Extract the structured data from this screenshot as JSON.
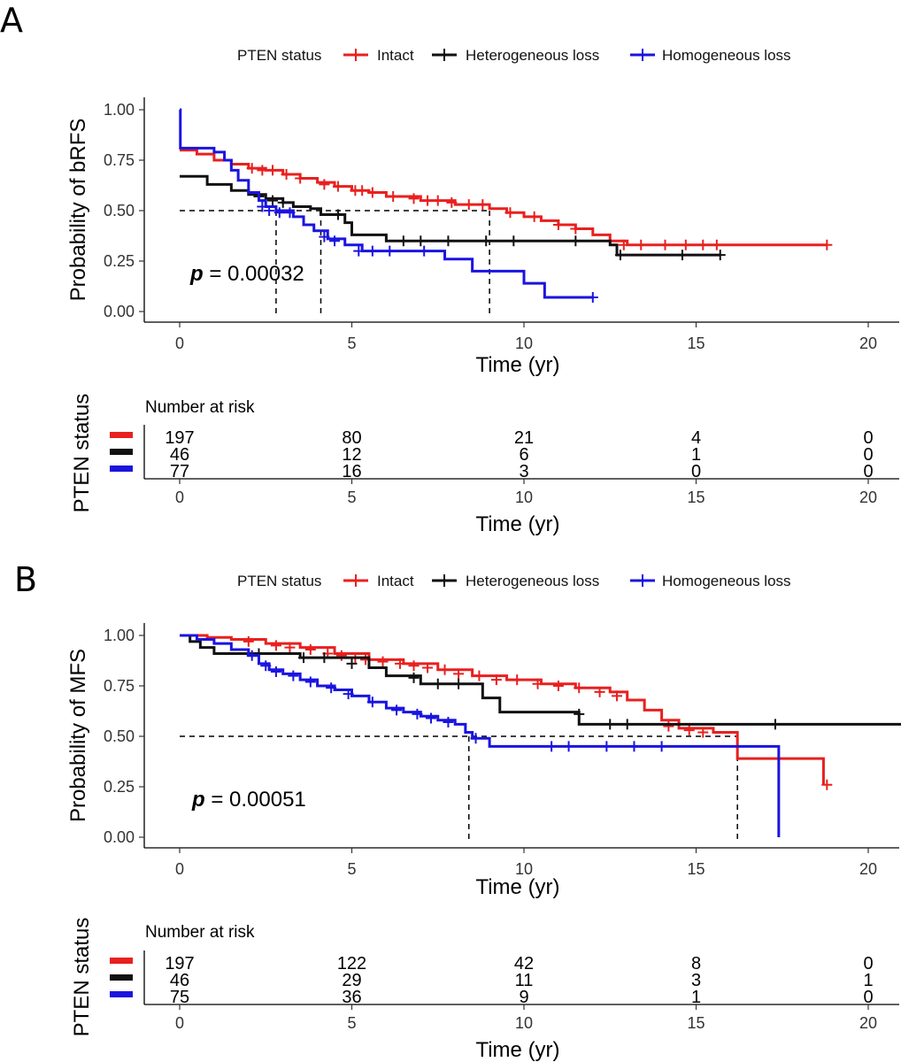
{
  "legend": {
    "title": "PTEN status",
    "items": [
      {
        "label": "Intact",
        "color": "#e8201f"
      },
      {
        "label": "Heterogeneous loss",
        "color": "#111111"
      },
      {
        "label": "Homogeneous loss",
        "color": "#1a14e0"
      }
    ]
  },
  "risk_table": {
    "title": "Number at risk",
    "ylabel": "PTEN status"
  },
  "chart_data": [
    {
      "panel": "A",
      "type": "line",
      "subtype": "kaplan-meier",
      "xlabel": "Time (yr)",
      "ylabel": "Probability of bRFS",
      "xlim": [
        -1,
        21
      ],
      "ylim": [
        0,
        1
      ],
      "xticks": [
        0,
        5,
        10,
        15,
        20
      ],
      "yticks": [
        "0.00",
        "0.25",
        "0.50",
        "0.75",
        "1.00"
      ],
      "pvalue_prefix": "p",
      "pvalue_text": " = 0.00032",
      "median_lines": {
        "y": 0.5,
        "x": [
          2.8,
          4.1,
          9.0
        ]
      },
      "series": [
        {
          "name": "Intact",
          "color": "#e8201f",
          "steps": [
            [
              0,
              0.8
            ],
            [
              0.5,
              0.78
            ],
            [
              1,
              0.75
            ],
            [
              1.5,
              0.73
            ],
            [
              2,
              0.71
            ],
            [
              2.5,
              0.7
            ],
            [
              3,
              0.68
            ],
            [
              3.5,
              0.66
            ],
            [
              4,
              0.64
            ],
            [
              4.5,
              0.62
            ],
            [
              5,
              0.6
            ],
            [
              5.5,
              0.59
            ],
            [
              6,
              0.57
            ],
            [
              7,
              0.55
            ],
            [
              8,
              0.53
            ],
            [
              9,
              0.51
            ],
            [
              9.5,
              0.49
            ],
            [
              10,
              0.47
            ],
            [
              10.5,
              0.45
            ],
            [
              11,
              0.43
            ],
            [
              11.5,
              0.41
            ],
            [
              12,
              0.38
            ],
            [
              12.5,
              0.35
            ],
            [
              13,
              0.33
            ],
            [
              18.8,
              0.33
            ]
          ],
          "censors": [
            [
              2.1,
              0.71
            ],
            [
              2.4,
              0.7
            ],
            [
              2.7,
              0.7
            ],
            [
              3.1,
              0.68
            ],
            [
              3.5,
              0.66
            ],
            [
              4.2,
              0.63
            ],
            [
              4.6,
              0.62
            ],
            [
              5.1,
              0.6
            ],
            [
              5.3,
              0.6
            ],
            [
              5.6,
              0.59
            ],
            [
              6.2,
              0.57
            ],
            [
              6.8,
              0.56
            ],
            [
              7.2,
              0.55
            ],
            [
              7.5,
              0.55
            ],
            [
              7.9,
              0.54
            ],
            [
              8.4,
              0.53
            ],
            [
              8.8,
              0.53
            ],
            [
              9.6,
              0.49
            ],
            [
              10.3,
              0.47
            ],
            [
              11.0,
              0.43
            ],
            [
              11.5,
              0.41
            ],
            [
              12.9,
              0.33
            ],
            [
              13.4,
              0.33
            ],
            [
              14.1,
              0.33
            ],
            [
              14.7,
              0.33
            ],
            [
              15.2,
              0.33
            ],
            [
              15.6,
              0.33
            ],
            [
              18.8,
              0.33
            ]
          ]
        },
        {
          "name": "Heterogeneous loss",
          "color": "#111111",
          "steps": [
            [
              0,
              0.67
            ],
            [
              0.8,
              0.63
            ],
            [
              1.5,
              0.6
            ],
            [
              2,
              0.58
            ],
            [
              2.5,
              0.56
            ],
            [
              3,
              0.54
            ],
            [
              3.3,
              0.52
            ],
            [
              3.8,
              0.51
            ],
            [
              4.1,
              0.48
            ],
            [
              4.8,
              0.44
            ],
            [
              5.0,
              0.38
            ],
            [
              6,
              0.35
            ],
            [
              12.5,
              0.33
            ],
            [
              12.7,
              0.28
            ],
            [
              15.7,
              0.28
            ]
          ],
          "censors": [
            [
              2.3,
              0.57
            ],
            [
              2.7,
              0.55
            ],
            [
              3.0,
              0.54
            ],
            [
              4.6,
              0.48
            ],
            [
              6.5,
              0.35
            ],
            [
              7.0,
              0.35
            ],
            [
              7.8,
              0.35
            ],
            [
              8.9,
              0.35
            ],
            [
              9.7,
              0.35
            ],
            [
              11.5,
              0.35
            ],
            [
              12.8,
              0.28
            ],
            [
              14.6,
              0.28
            ],
            [
              15.7,
              0.28
            ]
          ]
        },
        {
          "name": "Homogeneous loss",
          "color": "#1a14e0",
          "steps": [
            [
              0,
              1.0
            ],
            [
              0.02,
              0.81
            ],
            [
              1.0,
              0.79
            ],
            [
              1.3,
              0.75
            ],
            [
              1.5,
              0.7
            ],
            [
              1.7,
              0.65
            ],
            [
              2.0,
              0.59
            ],
            [
              2.3,
              0.55
            ],
            [
              2.5,
              0.52
            ],
            [
              2.8,
              0.5
            ],
            [
              3.3,
              0.47
            ],
            [
              3.6,
              0.43
            ],
            [
              3.9,
              0.4
            ],
            [
              4.3,
              0.36
            ],
            [
              4.8,
              0.33
            ],
            [
              5.3,
              0.3
            ],
            [
              6.2,
              0.3
            ],
            [
              7.2,
              0.3
            ],
            [
              7.7,
              0.26
            ],
            [
              8.5,
              0.2
            ],
            [
              10.0,
              0.14
            ],
            [
              10.6,
              0.07
            ],
            [
              12.0,
              0.07
            ]
          ],
          "censors": [
            [
              2.4,
              0.52
            ],
            [
              2.6,
              0.5
            ],
            [
              2.9,
              0.49
            ],
            [
              3.2,
              0.49
            ],
            [
              4.2,
              0.37
            ],
            [
              4.5,
              0.35
            ],
            [
              5.2,
              0.3
            ],
            [
              5.6,
              0.3
            ],
            [
              6.1,
              0.3
            ],
            [
              7.1,
              0.3
            ],
            [
              12.0,
              0.07
            ]
          ]
        }
      ],
      "risk_times": [
        0,
        5,
        10,
        15,
        20
      ],
      "risk_counts": [
        {
          "name": "Intact",
          "values": [
            "197",
            "80",
            "21",
            "4",
            "0"
          ]
        },
        {
          "name": "Heterogeneous loss",
          "values": [
            "46",
            "12",
            "6",
            "1",
            "0"
          ]
        },
        {
          "name": "Homogeneous loss",
          "values": [
            "77",
            "16",
            "3",
            "0",
            "0"
          ]
        }
      ]
    },
    {
      "panel": "B",
      "type": "line",
      "subtype": "kaplan-meier",
      "xlabel": "Time (yr)",
      "ylabel": "Probability of MFS",
      "xlim": [
        -1,
        21
      ],
      "ylim": [
        0,
        1
      ],
      "xticks": [
        0,
        5,
        10,
        15,
        20
      ],
      "yticks": [
        "0.00",
        "0.25",
        "0.50",
        "0.75",
        "1.00"
      ],
      "pvalue_prefix": "p",
      "pvalue_text": " = 0.00051",
      "median_lines": {
        "y": 0.5,
        "x": [
          8.4,
          16.2
        ]
      },
      "series": [
        {
          "name": "Intact",
          "color": "#e8201f",
          "steps": [
            [
              0,
              1.0
            ],
            [
              0.8,
              0.99
            ],
            [
              1.5,
              0.98
            ],
            [
              2.5,
              0.96
            ],
            [
              3.5,
              0.94
            ],
            [
              4.5,
              0.91
            ],
            [
              5.5,
              0.88
            ],
            [
              6.5,
              0.86
            ],
            [
              7.5,
              0.83
            ],
            [
              8.5,
              0.8
            ],
            [
              9.5,
              0.78
            ],
            [
              10.5,
              0.76
            ],
            [
              11.5,
              0.74
            ],
            [
              12.5,
              0.72
            ],
            [
              13.0,
              0.68
            ],
            [
              13.5,
              0.63
            ],
            [
              14.0,
              0.58
            ],
            [
              14.5,
              0.54
            ],
            [
              15.5,
              0.52
            ],
            [
              16.2,
              0.39
            ],
            [
              18.6,
              0.39
            ],
            [
              18.7,
              0.26
            ]
          ],
          "censors": [
            [
              2.0,
              0.97
            ],
            [
              2.8,
              0.95
            ],
            [
              3.2,
              0.94
            ],
            [
              3.8,
              0.93
            ],
            [
              4.3,
              0.91
            ],
            [
              4.7,
              0.9
            ],
            [
              5.1,
              0.89
            ],
            [
              5.4,
              0.88
            ],
            [
              5.9,
              0.87
            ],
            [
              6.4,
              0.86
            ],
            [
              6.8,
              0.85
            ],
            [
              7.2,
              0.84
            ],
            [
              7.7,
              0.83
            ],
            [
              8.1,
              0.81
            ],
            [
              8.7,
              0.8
            ],
            [
              9.2,
              0.78
            ],
            [
              9.8,
              0.78
            ],
            [
              10.4,
              0.76
            ],
            [
              11.0,
              0.75
            ],
            [
              11.6,
              0.74
            ],
            [
              12.2,
              0.72
            ],
            [
              12.7,
              0.7
            ],
            [
              14.2,
              0.55
            ],
            [
              14.8,
              0.53
            ],
            [
              15.2,
              0.52
            ],
            [
              18.8,
              0.26
            ]
          ]
        },
        {
          "name": "Heterogeneous loss",
          "color": "#111111",
          "steps": [
            [
              0,
              1.0
            ],
            [
              0.3,
              0.97
            ],
            [
              0.6,
              0.94
            ],
            [
              1.0,
              0.91
            ],
            [
              2.0,
              0.91
            ],
            [
              3.5,
              0.89
            ],
            [
              5.5,
              0.84
            ],
            [
              6.0,
              0.8
            ],
            [
              7.0,
              0.76
            ],
            [
              8.8,
              0.69
            ],
            [
              9.3,
              0.62
            ],
            [
              11.6,
              0.56
            ],
            [
              21,
              0.56
            ]
          ],
          "censors": [
            [
              2.3,
              0.91
            ],
            [
              3.6,
              0.89
            ],
            [
              4.2,
              0.89
            ],
            [
              5.0,
              0.86
            ],
            [
              6.8,
              0.79
            ],
            [
              7.5,
              0.76
            ],
            [
              8.1,
              0.76
            ],
            [
              11.6,
              0.61
            ],
            [
              12.5,
              0.56
            ],
            [
              13.0,
              0.56
            ],
            [
              17.3,
              0.56
            ]
          ]
        },
        {
          "name": "Homogeneous loss",
          "color": "#1a14e0",
          "steps": [
            [
              0,
              1.0
            ],
            [
              0.5,
              0.98
            ],
            [
              1.0,
              0.96
            ],
            [
              1.5,
              0.93
            ],
            [
              2.0,
              0.9
            ],
            [
              2.3,
              0.86
            ],
            [
              2.6,
              0.83
            ],
            [
              3.0,
              0.81
            ],
            [
              3.5,
              0.78
            ],
            [
              4.0,
              0.75
            ],
            [
              4.5,
              0.73
            ],
            [
              5.0,
              0.7
            ],
            [
              5.5,
              0.67
            ],
            [
              6.0,
              0.64
            ],
            [
              6.5,
              0.62
            ],
            [
              7.0,
              0.6
            ],
            [
              7.5,
              0.58
            ],
            [
              8.0,
              0.56
            ],
            [
              8.3,
              0.52
            ],
            [
              8.5,
              0.49
            ],
            [
              9.0,
              0.45
            ],
            [
              17.4,
              0.45
            ],
            [
              17.4,
              0.0
            ]
          ],
          "censors": [
            [
              2.1,
              0.9
            ],
            [
              2.5,
              0.85
            ],
            [
              2.8,
              0.82
            ],
            [
              3.3,
              0.8
            ],
            [
              3.8,
              0.77
            ],
            [
              4.4,
              0.74
            ],
            [
              4.9,
              0.71
            ],
            [
              5.6,
              0.67
            ],
            [
              6.3,
              0.63
            ],
            [
              6.9,
              0.61
            ],
            [
              7.3,
              0.59
            ],
            [
              7.8,
              0.57
            ],
            [
              8.6,
              0.49
            ],
            [
              10.8,
              0.45
            ],
            [
              11.3,
              0.45
            ],
            [
              12.4,
              0.45
            ],
            [
              13.2,
              0.45
            ],
            [
              14.0,
              0.45
            ]
          ]
        }
      ],
      "risk_times": [
        0,
        5,
        10,
        15,
        20
      ],
      "risk_counts": [
        {
          "name": "Intact",
          "values": [
            "197",
            "122",
            "42",
            "8",
            "0"
          ]
        },
        {
          "name": "Heterogeneous loss",
          "values": [
            "46",
            "29",
            "11",
            "3",
            "1"
          ]
        },
        {
          "name": "Homogeneous loss",
          "values": [
            "75",
            "36",
            "9",
            "1",
            "0"
          ]
        }
      ]
    }
  ]
}
